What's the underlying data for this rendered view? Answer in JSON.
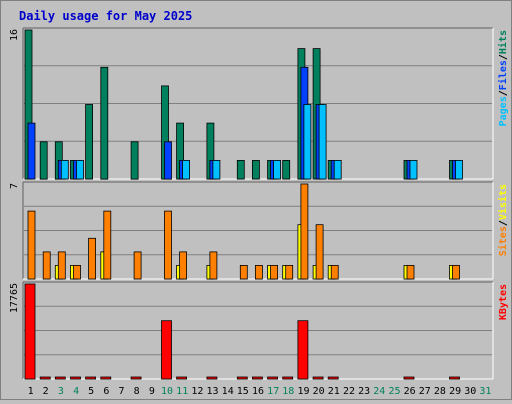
{
  "title": "Daily usage for May 2025",
  "colors": {
    "hits": "#00805c",
    "files": "#0040ff",
    "pages": "#00c0ff",
    "visits": "#ffff00",
    "sites": "#ff8000",
    "kbytes": "#ff0000",
    "weekend": "#00805c",
    "weekday": "#000000",
    "title": "#0000cc",
    "plot_bg": "#c0c0c0",
    "grid": "#808080"
  },
  "chart_data": [
    {
      "type": "bar",
      "panel": "hits-files-pages",
      "title": "Daily usage for May 2025",
      "ylim": [
        0,
        16
      ],
      "ymax_label": "16",
      "legend_right": [
        "Pages",
        "/",
        "Files",
        "/",
        "Hits"
      ],
      "categories": [
        "1",
        "2",
        "3",
        "4",
        "5",
        "6",
        "7",
        "8",
        "9",
        "10",
        "11",
        "12",
        "13",
        "14",
        "15",
        "16",
        "17",
        "18",
        "19",
        "20",
        "21",
        "22",
        "23",
        "24",
        "25",
        "26",
        "27",
        "28",
        "29",
        "30",
        "31"
      ],
      "series": [
        {
          "name": "Hits",
          "values": [
            16,
            4,
            4,
            2,
            8,
            12,
            0,
            4,
            0,
            10,
            6,
            0,
            6,
            0,
            2,
            2,
            2,
            2,
            14,
            14,
            2,
            0,
            0,
            0,
            0,
            2,
            0,
            0,
            2,
            0,
            0
          ]
        },
        {
          "name": "Files",
          "values": [
            6,
            0,
            2,
            2,
            0,
            0,
            0,
            0,
            0,
            4,
            2,
            0,
            2,
            0,
            0,
            0,
            2,
            0,
            12,
            8,
            2,
            0,
            0,
            0,
            0,
            2,
            0,
            0,
            2,
            0,
            0
          ]
        },
        {
          "name": "Pages",
          "values": [
            0,
            0,
            2,
            2,
            0,
            0,
            0,
            0,
            0,
            0,
            2,
            0,
            2,
            0,
            0,
            0,
            2,
            0,
            8,
            8,
            2,
            0,
            0,
            0,
            0,
            2,
            0,
            0,
            2,
            0,
            0
          ]
        }
      ]
    },
    {
      "type": "bar",
      "panel": "visits-sites",
      "ylim": [
        0,
        7
      ],
      "ymax_label": "7",
      "legend_right": [
        "Sites",
        "/",
        "Visits"
      ],
      "categories": [
        "1",
        "2",
        "3",
        "4",
        "5",
        "6",
        "7",
        "8",
        "9",
        "10",
        "11",
        "12",
        "13",
        "14",
        "15",
        "16",
        "17",
        "18",
        "19",
        "20",
        "21",
        "22",
        "23",
        "24",
        "25",
        "26",
        "27",
        "28",
        "29",
        "30",
        "31"
      ],
      "series": [
        {
          "name": "Visits",
          "values": [
            0,
            0,
            1,
            1,
            0,
            2,
            0,
            0,
            0,
            0,
            1,
            0,
            1,
            0,
            0,
            0,
            1,
            1,
            4,
            1,
            1,
            0,
            0,
            0,
            0,
            1,
            0,
            0,
            1,
            0,
            0
          ]
        },
        {
          "name": "Sites",
          "values": [
            5,
            2,
            2,
            1,
            3,
            5,
            0,
            2,
            0,
            5,
            2,
            0,
            2,
            0,
            1,
            1,
            1,
            1,
            7,
            4,
            1,
            0,
            0,
            0,
            0,
            1,
            0,
            0,
            1,
            0,
            0
          ]
        }
      ]
    },
    {
      "type": "bar",
      "panel": "kbytes",
      "ylim": [
        0,
        17765
      ],
      "ymax_label": "17765",
      "legend_right": [
        "KBytes"
      ],
      "categories": [
        "1",
        "2",
        "3",
        "4",
        "5",
        "6",
        "7",
        "8",
        "9",
        "10",
        "11",
        "12",
        "13",
        "14",
        "15",
        "16",
        "17",
        "18",
        "19",
        "20",
        "21",
        "22",
        "23",
        "24",
        "25",
        "26",
        "27",
        "28",
        "29",
        "30",
        "31"
      ],
      "series": [
        {
          "name": "KBytes",
          "values": [
            17765,
            150,
            150,
            150,
            150,
            150,
            0,
            150,
            0,
            10900,
            150,
            0,
            150,
            0,
            150,
            150,
            150,
            150,
            10900,
            150,
            150,
            0,
            0,
            0,
            0,
            150,
            0,
            0,
            150,
            0,
            0
          ]
        }
      ]
    }
  ],
  "day_labels": [
    "1",
    "2",
    "3",
    "4",
    "5",
    "6",
    "7",
    "8",
    "9",
    "10",
    "11",
    "12",
    "13",
    "14",
    "15",
    "16",
    "17",
    "18",
    "19",
    "20",
    "21",
    "22",
    "23",
    "24",
    "25",
    "26",
    "27",
    "28",
    "29",
    "30",
    "31"
  ],
  "weekend_days": [
    3,
    4,
    10,
    11,
    17,
    18,
    24,
    25,
    31
  ]
}
